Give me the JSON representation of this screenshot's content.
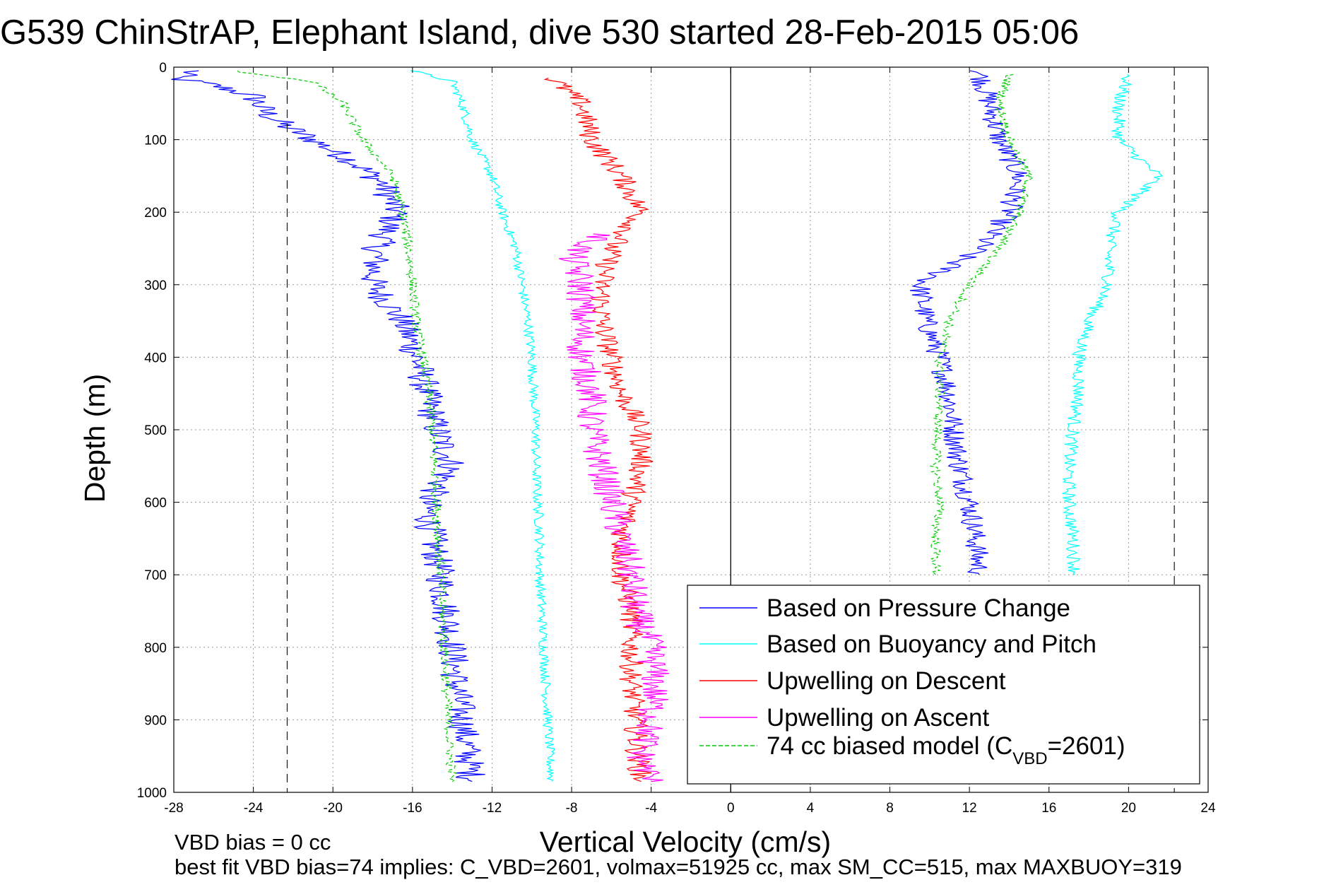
{
  "chart_data": {
    "type": "line",
    "title": "G539 ChinStrAP, Elephant Island, dive 530 started 28-Feb-2015 05:06",
    "xlabel": "Vertical Velocity (cm/s)",
    "ylabel": "Depth (m)",
    "xlim": [
      -28,
      24
    ],
    "ylim": [
      0,
      1000
    ],
    "y_reversed": true,
    "grid": true,
    "xticks": [
      "-28",
      "-24",
      "-20",
      "-16",
      "-12",
      "-8",
      "-4",
      "0",
      "4",
      "8",
      "12",
      "16",
      "20",
      "24"
    ],
    "yticks": [
      "0",
      "100",
      "200",
      "300",
      "400",
      "500",
      "600",
      "700",
      "800",
      "900",
      "1000"
    ],
    "reference_lines": [
      {
        "x": 0,
        "style": "solid"
      },
      {
        "x": -22.3,
        "style": "dashed"
      },
      {
        "x": 22.3,
        "style": "dashed"
      }
    ],
    "legend": {
      "placement": "bottom-right",
      "entries": [
        {
          "label": "Based on Pressure Change",
          "color": "#0000ff"
        },
        {
          "label": "Based on Buoyancy and Pitch",
          "color": "#00ffff"
        },
        {
          "label": "Upwelling on Descent",
          "color": "#ff0000"
        },
        {
          "label": "Upwelling on Ascent",
          "color": "#ff00ff"
        },
        {
          "label_prefix": "74 cc biased model (C",
          "label_sub": "VBD",
          "label_suffix": "=2601)",
          "color": "#00cc00",
          "dashed": true
        }
      ]
    },
    "series": [
      {
        "key": "pressure_descent",
        "color": "#0000ff",
        "noise": 0.8,
        "depth": [
          5,
          15,
          25,
          40,
          60,
          80,
          100,
          130,
          160,
          200,
          250,
          300,
          350,
          400,
          450,
          500,
          550,
          600,
          650,
          700,
          750,
          800,
          850,
          900,
          950,
          985
        ],
        "values": [
          -27,
          -28,
          -26,
          -24,
          -23.5,
          -22.5,
          -21,
          -19,
          -17.5,
          -16.8,
          -17.8,
          -18,
          -16.5,
          -15.8,
          -15.3,
          -14.8,
          -14,
          -15.3,
          -15,
          -14.6,
          -14.3,
          -14,
          -13.8,
          -13.5,
          -13.2,
          -13
        ]
      },
      {
        "key": "pressure_ascent",
        "color": "#0000ff",
        "noise": 0.6,
        "depth": [
          5,
          50,
          100,
          150,
          200,
          250,
          300,
          350,
          400,
          450,
          500,
          550,
          600,
          650,
          700
        ],
        "values": [
          12.5,
          13,
          13.5,
          14.5,
          14,
          12.5,
          9.5,
          9.8,
          10.5,
          11,
          11.2,
          11.5,
          12,
          12.3,
          12.5
        ]
      },
      {
        "key": "buoyancy_descent",
        "color": "#00ffff",
        "noise": 0.25,
        "depth": [
          5,
          20,
          50,
          100,
          150,
          200,
          250,
          300,
          350,
          400,
          450,
          500,
          550,
          600,
          650,
          700,
          750,
          800,
          850,
          900,
          950,
          985
        ],
        "values": [
          -16,
          -14,
          -13.5,
          -13,
          -12,
          -11.5,
          -10.8,
          -10.5,
          -10.2,
          -10,
          -9.9,
          -9.8,
          -9.8,
          -9.7,
          -9.6,
          -9.6,
          -9.5,
          -9.4,
          -9.3,
          -9.2,
          -9.1,
          -9
        ]
      },
      {
        "key": "buoyancy_ascent",
        "color": "#00ffff",
        "noise": 0.35,
        "depth": [
          10,
          50,
          100,
          150,
          200,
          250,
          300,
          350,
          400,
          450,
          500,
          550,
          600,
          650,
          700
        ],
        "values": [
          20,
          19.5,
          19.5,
          21.5,
          19.5,
          19,
          19,
          18,
          17.5,
          17.5,
          17.2,
          17,
          17,
          17.2,
          17.3
        ]
      },
      {
        "key": "upwelling_descent",
        "color": "#ff0000",
        "noise": 0.6,
        "depth": [
          15,
          50,
          100,
          150,
          200,
          250,
          300,
          350,
          400,
          450,
          500,
          550,
          600,
          650,
          700,
          750,
          800,
          850,
          900,
          950,
          985
        ],
        "values": [
          -9,
          -7.5,
          -7,
          -5.5,
          -4.5,
          -6,
          -6.5,
          -6.5,
          -6,
          -5.5,
          -4.5,
          -4.5,
          -5,
          -5.5,
          -5.5,
          -5,
          -5,
          -5,
          -4.8,
          -4.7,
          -4.5
        ]
      },
      {
        "key": "upwelling_ascent",
        "color": "#ff00ff",
        "noise": 0.8,
        "depth": [
          230,
          260,
          300,
          350,
          400,
          450,
          500,
          550,
          600,
          650,
          700,
          750,
          800,
          850,
          900,
          950,
          985
        ],
        "values": [
          -6.5,
          -8,
          -7.5,
          -7.5,
          -7.5,
          -7,
          -7,
          -6.5,
          -6,
          -5.5,
          -5,
          -4.8,
          -4,
          -3.8,
          -4,
          -4.5,
          -4
        ]
      },
      {
        "key": "model_descent",
        "color": "#00cc00",
        "dashed": true,
        "noise": 0.25,
        "depth": [
          5,
          20,
          50,
          100,
          150,
          200,
          250,
          300,
          350,
          400,
          450,
          500,
          550,
          600,
          650,
          700,
          750,
          800,
          850,
          900,
          950,
          985
        ],
        "values": [
          -25,
          -21,
          -19.5,
          -18.5,
          -17,
          -16.5,
          -16.2,
          -16,
          -15.8,
          -15.5,
          -15.2,
          -15,
          -14.9,
          -14.8,
          -14.7,
          -14.6,
          -14.5,
          -14.4,
          -14.3,
          -14.2,
          -14.1,
          -14
        ]
      },
      {
        "key": "model_ascent",
        "color": "#00cc00",
        "dashed": true,
        "noise": 0.25,
        "depth": [
          10,
          50,
          100,
          150,
          200,
          250,
          300,
          350,
          400,
          450,
          500,
          550,
          600,
          650,
          700
        ],
        "values": [
          14,
          13.5,
          14,
          15,
          14.5,
          13.5,
          12,
          11,
          10.5,
          10.5,
          10.4,
          10.3,
          10.5,
          10.3,
          10.3
        ]
      }
    ]
  },
  "footer": {
    "line1": "VBD bias = 0 cc",
    "line2": "best fit VBD bias=74 implies: C_VBD=2601, volmax=51925 cc, max SM_CC=515, max MAXBUOY=319"
  }
}
